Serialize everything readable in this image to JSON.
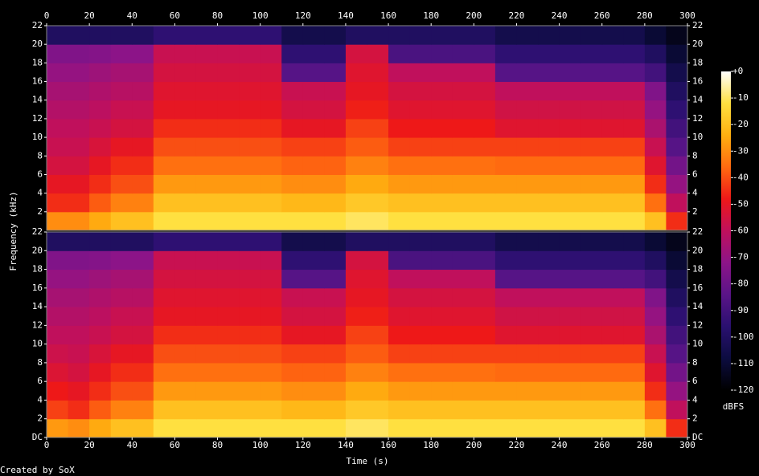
{
  "chart_data": {
    "type": "spectrogram",
    "xlabel": "Time (s)",
    "ylabel": "Frequency (kHz)",
    "credit": "Created by SoX",
    "xlim": [
      0,
      300
    ],
    "xticks": [
      0,
      20,
      40,
      60,
      80,
      100,
      120,
      140,
      160,
      180,
      200,
      220,
      240,
      260,
      280,
      300
    ],
    "ylim": [
      0,
      22
    ],
    "time_bins": [
      0,
      10,
      20,
      30,
      40,
      50,
      60,
      70,
      80,
      90,
      100,
      110,
      120,
      130,
      140,
      150,
      160,
      170,
      180,
      190,
      200,
      210,
      220,
      230,
      240,
      250,
      260,
      270,
      280,
      290,
      300
    ],
    "freq_bins": [
      0,
      2,
      4,
      6,
      8,
      10,
      12,
      14,
      16,
      18,
      20,
      22
    ],
    "colorscale": [
      "#000000",
      "#0c0c40",
      "#2a1070",
      "#5a1488",
      "#8c1488",
      "#c0105c",
      "#ee1818",
      "#ff6a10",
      "#ffb010",
      "#ffe040",
      "#ffffff"
    ],
    "colorbar": {
      "label": "dBFS",
      "lim": [
        -120,
        0
      ],
      "ticks": [
        {
          "value": 0,
          "label": "+0"
        },
        -10,
        -20,
        -30,
        -40,
        -50,
        -60,
        -70,
        -80,
        -90,
        -100,
        -110,
        -120
      ]
    },
    "channels": [
      {
        "yticks": [
          2,
          4,
          6,
          8,
          10,
          12,
          14,
          16,
          18,
          20,
          22
        ],
        "values": [
          [
            -30,
            -30,
            -25,
            -20,
            -20,
            -12,
            -12,
            -12,
            -12,
            -12,
            -12,
            -12,
            -12,
            -12,
            -10,
            -10,
            -12,
            -12,
            -12,
            -12,
            -12,
            -12,
            -12,
            -12,
            -12,
            -12,
            -12,
            -12,
            -20,
            -45
          ],
          [
            -45,
            -45,
            -38,
            -32,
            -32,
            -20,
            -20,
            -20,
            -20,
            -20,
            -20,
            -22,
            -22,
            -22,
            -18,
            -18,
            -20,
            -20,
            -20,
            -20,
            -20,
            -20,
            -20,
            -20,
            -20,
            -20,
            -20,
            -20,
            -35,
            -60
          ],
          [
            -50,
            -50,
            -45,
            -40,
            -40,
            -28,
            -28,
            -28,
            -28,
            -28,
            -28,
            -30,
            -30,
            -30,
            -25,
            -25,
            -28,
            -28,
            -28,
            -28,
            -28,
            -28,
            -28,
            -28,
            -28,
            -28,
            -28,
            -28,
            -45,
            -70
          ],
          [
            -55,
            -55,
            -50,
            -45,
            -45,
            -35,
            -35,
            -35,
            -35,
            -35,
            -35,
            -37,
            -37,
            -37,
            -32,
            -32,
            -35,
            -35,
            -35,
            -35,
            -35,
            -36,
            -36,
            -36,
            -36,
            -36,
            -36,
            -36,
            -52,
            -78
          ],
          [
            -58,
            -58,
            -54,
            -50,
            -50,
            -40,
            -40,
            -40,
            -40,
            -40,
            -40,
            -42,
            -42,
            -42,
            -38,
            -38,
            -42,
            -42,
            -42,
            -42,
            -42,
            -42,
            -42,
            -42,
            -42,
            -42,
            -42,
            -42,
            -58,
            -85
          ],
          [
            -60,
            -60,
            -58,
            -55,
            -55,
            -45,
            -45,
            -45,
            -45,
            -45,
            -45,
            -50,
            -50,
            -50,
            -42,
            -42,
            -48,
            -48,
            -48,
            -48,
            -48,
            -52,
            -52,
            -52,
            -52,
            -52,
            -52,
            -52,
            -65,
            -90
          ],
          [
            -63,
            -63,
            -61,
            -58,
            -58,
            -50,
            -50,
            -50,
            -50,
            -50,
            -50,
            -55,
            -55,
            -55,
            -47,
            -47,
            -52,
            -52,
            -52,
            -52,
            -52,
            -56,
            -56,
            -56,
            -56,
            -56,
            -56,
            -56,
            -70,
            -95
          ],
          [
            -66,
            -66,
            -64,
            -62,
            -62,
            -52,
            -52,
            -52,
            -52,
            -52,
            -52,
            -58,
            -58,
            -58,
            -50,
            -50,
            -55,
            -55,
            -55,
            -55,
            -55,
            -60,
            -60,
            -60,
            -60,
            -60,
            -60,
            -60,
            -75,
            -100
          ],
          [
            -70,
            -70,
            -68,
            -66,
            -66,
            -55,
            -55,
            -55,
            -55,
            -55,
            -55,
            -85,
            -85,
            -85,
            -52,
            -52,
            -60,
            -60,
            -60,
            -60,
            -60,
            -85,
            -85,
            -85,
            -85,
            -85,
            -85,
            -85,
            -90,
            -105
          ],
          [
            -75,
            -75,
            -74,
            -72,
            -72,
            -58,
            -58,
            -58,
            -58,
            -58,
            -58,
            -95,
            -95,
            -95,
            -55,
            -55,
            -88,
            -88,
            -88,
            -88,
            -88,
            -95,
            -95,
            -95,
            -95,
            -95,
            -95,
            -95,
            -100,
            -110
          ],
          [
            -100,
            -100,
            -100,
            -100,
            -100,
            -95,
            -95,
            -95,
            -95,
            -95,
            -95,
            -105,
            -105,
            -105,
            -100,
            -100,
            -100,
            -100,
            -100,
            -100,
            -100,
            -105,
            -105,
            -105,
            -105,
            -105,
            -105,
            -105,
            -110,
            -115
          ]
        ]
      },
      {
        "yticks": [
          {
            "value": 0,
            "label": "DC"
          },
          2,
          4,
          6,
          8,
          10,
          12,
          14,
          16,
          18,
          20,
          22
        ],
        "values": [
          [
            -28,
            -30,
            -25,
            -20,
            -20,
            -12,
            -12,
            -12,
            -12,
            -12,
            -12,
            -12,
            -12,
            -12,
            -10,
            -10,
            -12,
            -12,
            -12,
            -12,
            -12,
            -12,
            -12,
            -12,
            -12,
            -12,
            -12,
            -12,
            -20,
            -45
          ],
          [
            -42,
            -45,
            -38,
            -32,
            -32,
            -20,
            -20,
            -20,
            -20,
            -20,
            -20,
            -22,
            -22,
            -22,
            -18,
            -18,
            -20,
            -20,
            -20,
            -20,
            -20,
            -20,
            -20,
            -20,
            -20,
            -20,
            -20,
            -20,
            -35,
            -60
          ],
          [
            -48,
            -50,
            -45,
            -40,
            -40,
            -28,
            -28,
            -28,
            -28,
            -28,
            -28,
            -30,
            -30,
            -30,
            -25,
            -25,
            -28,
            -28,
            -28,
            -28,
            -28,
            -28,
            -28,
            -28,
            -28,
            -28,
            -28,
            -28,
            -45,
            -70
          ],
          [
            -53,
            -55,
            -50,
            -45,
            -45,
            -35,
            -35,
            -35,
            -35,
            -35,
            -35,
            -37,
            -37,
            -37,
            -32,
            -32,
            -35,
            -35,
            -35,
            -35,
            -35,
            -36,
            -36,
            -36,
            -36,
            -36,
            -36,
            -36,
            -52,
            -78
          ],
          [
            -57,
            -58,
            -54,
            -50,
            -50,
            -40,
            -40,
            -40,
            -40,
            -40,
            -40,
            -42,
            -42,
            -42,
            -38,
            -38,
            -42,
            -42,
            -42,
            -42,
            -42,
            -42,
            -42,
            -42,
            -42,
            -42,
            -42,
            -42,
            -58,
            -85
          ],
          [
            -60,
            -60,
            -58,
            -55,
            -55,
            -45,
            -45,
            -45,
            -45,
            -45,
            -45,
            -50,
            -50,
            -50,
            -42,
            -42,
            -48,
            -48,
            -48,
            -48,
            -48,
            -52,
            -52,
            -52,
            -52,
            -52,
            -52,
            -52,
            -65,
            -90
          ],
          [
            -63,
            -63,
            -61,
            -58,
            -58,
            -50,
            -50,
            -50,
            -50,
            -50,
            -50,
            -55,
            -55,
            -55,
            -47,
            -47,
            -52,
            -52,
            -52,
            -52,
            -52,
            -56,
            -56,
            -56,
            -56,
            -56,
            -56,
            -56,
            -70,
            -95
          ],
          [
            -66,
            -66,
            -64,
            -62,
            -62,
            -52,
            -52,
            -52,
            -52,
            -52,
            -52,
            -58,
            -58,
            -58,
            -50,
            -50,
            -55,
            -55,
            -55,
            -55,
            -55,
            -60,
            -60,
            -60,
            -60,
            -60,
            -60,
            -60,
            -75,
            -100
          ],
          [
            -70,
            -70,
            -68,
            -66,
            -66,
            -55,
            -55,
            -55,
            -55,
            -55,
            -55,
            -85,
            -85,
            -85,
            -52,
            -52,
            -60,
            -60,
            -60,
            -60,
            -60,
            -85,
            -85,
            -85,
            -85,
            -85,
            -85,
            -85,
            -90,
            -105
          ],
          [
            -75,
            -75,
            -74,
            -72,
            -72,
            -58,
            -58,
            -58,
            -58,
            -58,
            -58,
            -95,
            -95,
            -95,
            -55,
            -55,
            -88,
            -88,
            -88,
            -88,
            -88,
            -95,
            -95,
            -95,
            -95,
            -95,
            -95,
            -95,
            -100,
            -110
          ],
          [
            -100,
            -100,
            -100,
            -100,
            -100,
            -95,
            -95,
            -95,
            -95,
            -95,
            -95,
            -105,
            -105,
            -105,
            -100,
            -100,
            -100,
            -100,
            -100,
            -100,
            -100,
            -105,
            -105,
            -105,
            -105,
            -105,
            -105,
            -105,
            -110,
            -115
          ]
        ]
      }
    ]
  }
}
